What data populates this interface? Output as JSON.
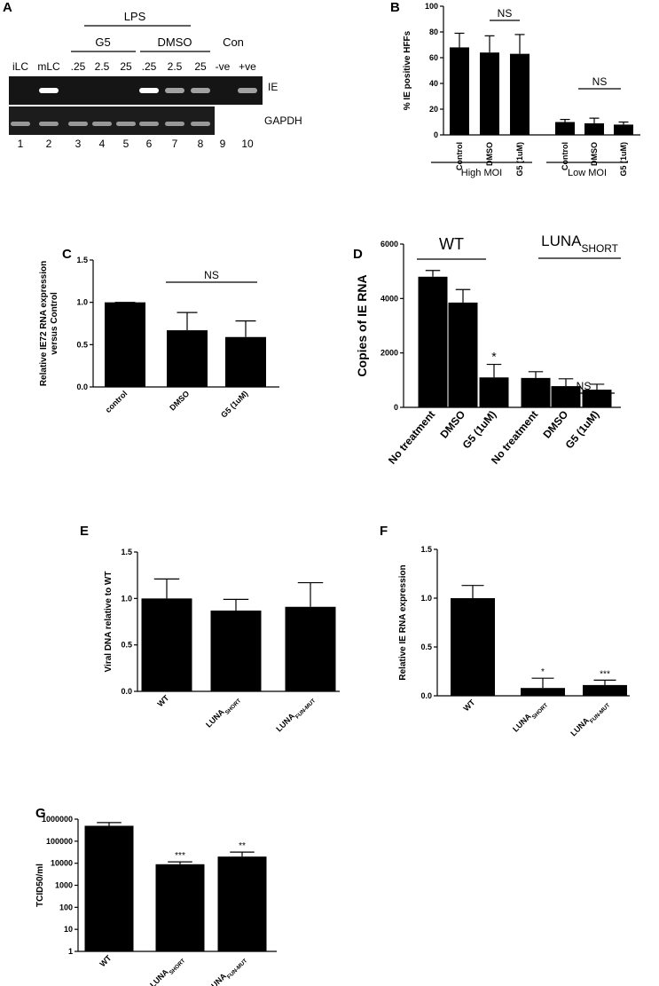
{
  "chart_data": [
    {
      "type": "gel",
      "panel": "A",
      "header": "LPS",
      "groups": [
        "G5",
        "DMSO",
        "Con"
      ],
      "lanes": [
        "iLC",
        "mLC",
        ".25",
        "2.5",
        "25",
        ".25",
        "2.5",
        "25",
        "-ve",
        "+ve"
      ],
      "genes": [
        "IE",
        "GAPDH"
      ],
      "lane_numbers": [
        1,
        2,
        3,
        4,
        5,
        6,
        7,
        8,
        9,
        10
      ]
    },
    {
      "type": "bar",
      "panel": "B",
      "ylabel": "% IE positive HFFs",
      "categories": [
        "Control",
        "DMSO",
        "G5 (1uM)",
        "Control",
        "DMSO",
        "G5 (1uM)"
      ],
      "values": [
        68,
        64,
        63,
        10,
        9,
        8
      ],
      "errors": [
        11,
        13,
        15,
        2,
        4,
        2
      ],
      "groups": [
        "High MOI",
        "Low MOI"
      ],
      "annotations": [
        "NS",
        "NS"
      ],
      "color": "#000000",
      "ylim": [
        0,
        100
      ],
      "yticks": [
        0,
        20,
        40,
        60,
        80,
        100
      ]
    },
    {
      "type": "bar",
      "panel": "C",
      "ylabel": [
        "Relative IE72 RNA expression",
        "versus Control"
      ],
      "categories": [
        "control",
        "DMSO",
        "G5 (1uM)"
      ],
      "values": [
        1.0,
        0.67,
        0.59
      ],
      "errors": [
        0,
        0.21,
        0.19
      ],
      "annotations": [
        "NS"
      ],
      "color": "#000000",
      "ylim": [
        0,
        1.5
      ],
      "yticks": [
        {
          "value": 0,
          "label": "0.0"
        },
        {
          "value": 0.5,
          "label": "0.5"
        },
        {
          "value": 1,
          "label": "1.0"
        },
        {
          "value": 1.5,
          "label": "1.5"
        }
      ]
    },
    {
      "type": "bar",
      "panel": "D",
      "ylabel": "Copies of IE RNA",
      "categories": [
        "No treatment",
        "DMSO",
        "G5 (1uM)",
        "No treatment",
        "DMSO",
        "G5 (1uM)"
      ],
      "values": [
        4800,
        3850,
        1100,
        1080,
        780,
        650
      ],
      "errors": [
        230,
        480,
        480,
        230,
        270,
        200
      ],
      "significance": [
        null,
        null,
        "*",
        null,
        null,
        null
      ],
      "groups": [
        "WT",
        {
          "text": "LUNA",
          "sub": "SHORT"
        }
      ],
      "annotations": [
        "NS"
      ],
      "color": "#000000",
      "ylim": [
        0,
        6000
      ],
      "yticks": [
        0,
        2000,
        4000,
        6000
      ]
    },
    {
      "type": "bar",
      "panel": "E",
      "ylabel": "Viral DNA relative to WT",
      "categories": [
        "WT",
        {
          "text": "LUNA",
          "sub": "SHORT"
        },
        {
          "text": "LUNA",
          "sub": "FUN-MUT"
        }
      ],
      "values": [
        1.0,
        0.87,
        0.91
      ],
      "errors": [
        0.21,
        0.12,
        0.26
      ],
      "color": "#000000",
      "ylim": [
        0,
        1.5
      ],
      "yticks": [
        {
          "value": 0,
          "label": "0.0"
        },
        {
          "value": 0.5,
          "label": "0.5"
        },
        {
          "value": 1,
          "label": "1.0"
        },
        {
          "value": 1.5,
          "label": "1.5"
        }
      ]
    },
    {
      "type": "bar",
      "panel": "F",
      "ylabel": "Relative IE RNA expression",
      "categories": [
        "WT",
        {
          "text": "LUNA",
          "sub": "SHORT"
        },
        {
          "text": "LUNA",
          "sub": "FUN-MUT"
        }
      ],
      "values": [
        1.0,
        0.08,
        0.11
      ],
      "errors": [
        0.13,
        0.1,
        0.05
      ],
      "significance": [
        null,
        "*",
        "***"
      ],
      "color": "#000000",
      "ylim": [
        0,
        1.5
      ],
      "yticks": [
        {
          "value": 0,
          "label": "0.0"
        },
        {
          "value": 0.5,
          "label": "0.5"
        },
        {
          "value": 1,
          "label": "1.0"
        },
        {
          "value": 1.5,
          "label": "1.5"
        }
      ]
    },
    {
      "type": "bar",
      "panel": "G",
      "ylabel": "TCID50/ml",
      "log_scale": true,
      "categories": [
        "WT",
        {
          "text": "LUNA",
          "sub": "SHORT"
        },
        {
          "text": "LUNA",
          "sub": "FUN-MUT"
        }
      ],
      "values": [
        500000,
        9000,
        20000
      ],
      "errors": [
        200000,
        2500,
        12000
      ],
      "significance": [
        null,
        "***",
        "**"
      ],
      "color": "#000000",
      "ylim": [
        1,
        1000000
      ],
      "yticks": [
        1,
        10,
        100,
        1000,
        10000,
        100000,
        1000000
      ]
    }
  ]
}
